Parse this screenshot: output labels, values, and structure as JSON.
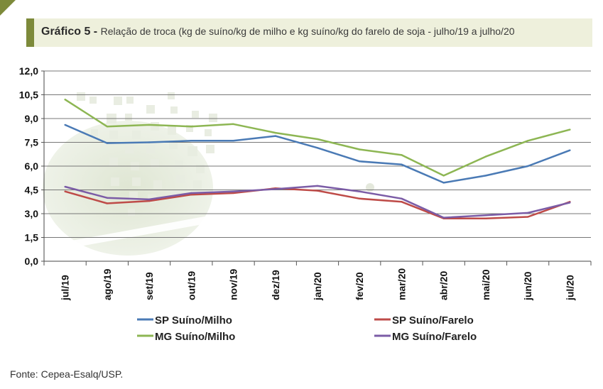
{
  "header": {
    "label": "Gráfico 5 -",
    "subtitle": "Relação de troca (kg de suíno/kg de milho e kg suíno/kg do farelo de soja - julho/19 a julho/20"
  },
  "source": "Fonte: Cepea-Esalq/USP.",
  "colors": {
    "accent": "#7d8a3a",
    "title_bg": "#eef0dc",
    "sp_milho": "#4a7ab5",
    "sp_farelo": "#be4b48",
    "mg_milho": "#8db653",
    "mg_farelo": "#7b5ca6"
  },
  "chart_data": {
    "type": "line",
    "title": "Relação de troca (kg de suíno/kg de milho e kg suíno/kg do farelo de soja - julho/19 a julho/20",
    "categories": [
      "jul/19",
      "ago/19",
      "set/19",
      "out/19",
      "nov/19",
      "dez/19",
      "jan/20",
      "fev/20",
      "mar/20",
      "abr/20",
      "mai/20",
      "jun/20",
      "jul/20"
    ],
    "ylim": [
      0,
      12
    ],
    "yticks": [
      "0,0",
      "1,5",
      "3,0",
      "4,5",
      "6,0",
      "7,5",
      "9,0",
      "10,5",
      "12,0"
    ],
    "ytick_values": [
      0,
      1.5,
      3,
      4.5,
      6,
      7.5,
      9,
      10.5,
      12
    ],
    "grid": true,
    "legend_position": "bottom",
    "series": [
      {
        "name": "SP Suíno/Milho",
        "color": "#4a7ab5",
        "values": [
          8.6,
          7.45,
          7.5,
          7.6,
          7.6,
          7.9,
          7.15,
          6.3,
          6.1,
          4.95,
          5.4,
          6.0,
          7.0
        ]
      },
      {
        "name": "SP Suíno/Farelo",
        "color": "#be4b48",
        "values": [
          4.4,
          3.65,
          3.8,
          4.2,
          4.3,
          4.6,
          4.45,
          3.95,
          3.75,
          2.7,
          2.7,
          2.8,
          3.75
        ]
      },
      {
        "name": "MG Suíno/Milho",
        "color": "#8db653",
        "values": [
          10.2,
          8.5,
          8.6,
          8.5,
          8.65,
          8.1,
          7.7,
          7.05,
          6.7,
          5.4,
          6.6,
          7.6,
          8.3
        ]
      },
      {
        "name": "MG Suíno/Farelo",
        "color": "#7b5ca6",
        "values": [
          4.7,
          4.0,
          3.9,
          4.3,
          4.4,
          4.55,
          4.75,
          4.4,
          3.95,
          2.75,
          2.9,
          3.05,
          3.7
        ]
      }
    ]
  }
}
